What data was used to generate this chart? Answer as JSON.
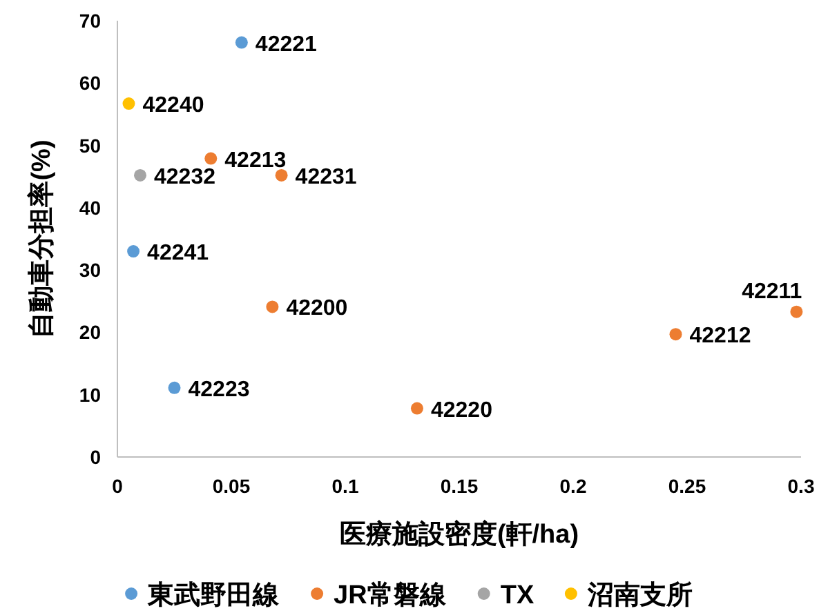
{
  "chart_data": {
    "type": "scatter",
    "xlabel": "医療施設密度(軒/ha)",
    "ylabel": "自動車分担率(%)",
    "xlim": [
      0,
      0.3
    ],
    "xticks": [
      0,
      0.05,
      0.1,
      0.15,
      0.2,
      0.25,
      0.3
    ],
    "ylim": [
      0,
      70
    ],
    "yticks": [
      0,
      10,
      20,
      30,
      40,
      50,
      60,
      70
    ],
    "grid": false,
    "legend": "bottom",
    "marker": "circle",
    "series": [
      {
        "name": "東武野田線",
        "color": "#5b9bd5",
        "x": [
          0.0545,
          0.007,
          0.025
        ],
        "values": [
          66.5,
          33.0,
          11.1
        ]
      },
      {
        "name": "JR常磐線",
        "color": "#ed7d31",
        "x": [
          0.041,
          0.072,
          0.068,
          0.298,
          0.245,
          0.1315
        ],
        "values": [
          47.9,
          45.2,
          24.1,
          23.3,
          19.7,
          7.8
        ]
      },
      {
        "name": "TX",
        "color": "#a5a5a5",
        "x": [
          0.01
        ],
        "values": [
          45.2
        ]
      },
      {
        "name": "沼南支所",
        "color": "#ffc000",
        "x": [
          0.005
        ],
        "values": [
          56.7
        ]
      }
    ],
    "annotations": [
      {
        "text": "42221",
        "x": 0.0545,
        "y": 66.5
      },
      {
        "text": "42240",
        "x": 0.005,
        "y": 56.7
      },
      {
        "text": "42213",
        "x": 0.041,
        "y": 47.9
      },
      {
        "text": "42232",
        "x": 0.01,
        "y": 45.2
      },
      {
        "text": "42231",
        "x": 0.072,
        "y": 45.2
      },
      {
        "text": "42241",
        "x": 0.007,
        "y": 33.0
      },
      {
        "text": "42200",
        "x": 0.068,
        "y": 24.1
      },
      {
        "text": "42211",
        "x": 0.298,
        "y": 23.3
      },
      {
        "text": "42212",
        "x": 0.245,
        "y": 19.7
      },
      {
        "text": "42223",
        "x": 0.025,
        "y": 11.1
      },
      {
        "text": "42220",
        "x": 0.1315,
        "y": 7.8
      }
    ]
  }
}
